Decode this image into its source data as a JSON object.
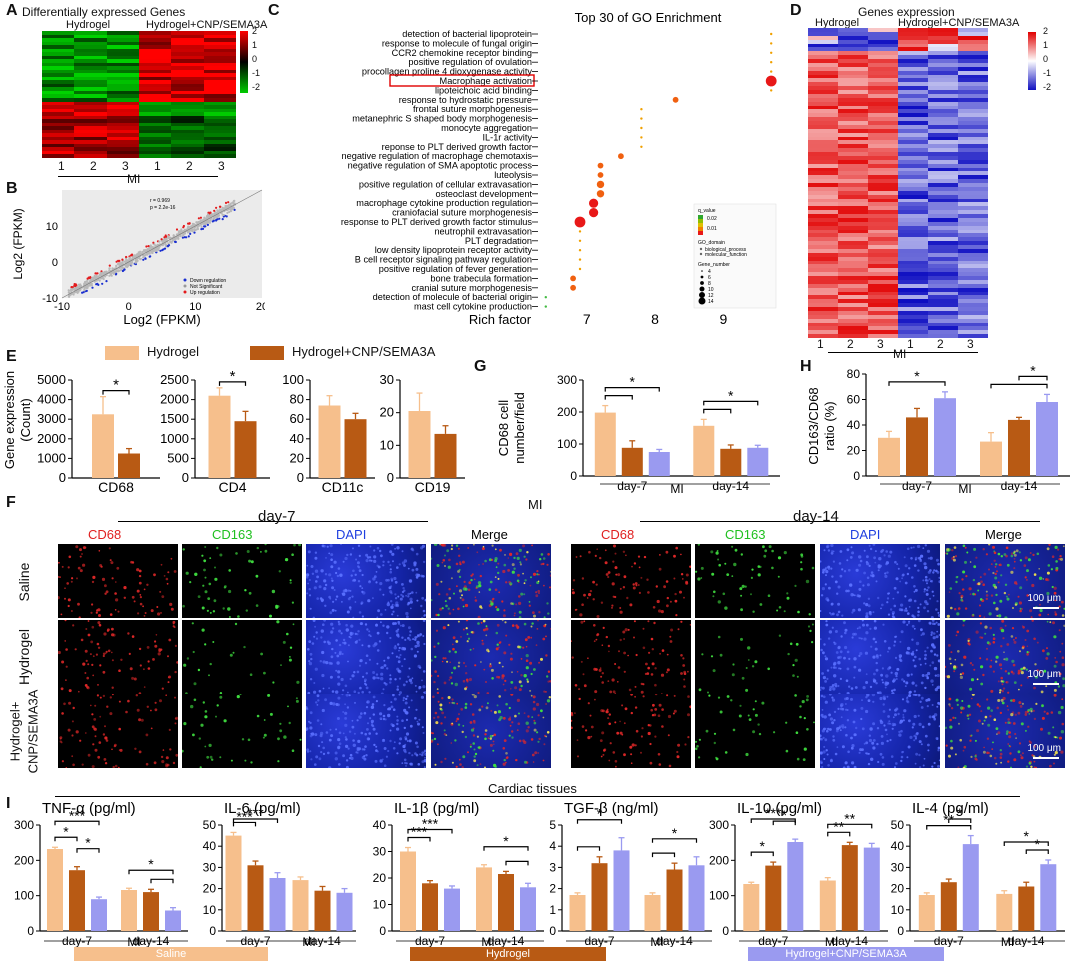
{
  "colors": {
    "saline": "#f6bf8c",
    "hydrogel": "#b85a14",
    "cnp": "#9a9af0",
    "red": "#e31a1c",
    "green": "#2eb82e",
    "blue": "#1a2fd0"
  },
  "panelA": {
    "letter": "A",
    "title": "Differentially expressed Genes",
    "group1": "Hydrogel",
    "group2": "Hydrogel+CNP/SEMA3A",
    "cols": [
      "1",
      "2",
      "3",
      "1",
      "2",
      "3"
    ],
    "xgroup": "MI",
    "scale": [
      "2",
      "1",
      "0",
      "-1",
      "-2"
    ]
  },
  "panelB": {
    "letter": "B",
    "ylabel": "Log2 (FPKM)",
    "xlabel": "Log2 (FPKM)",
    "stats": [
      "r = 0.969",
      "p = 2.2e-16"
    ],
    "legend": [
      "Down regulation",
      "Not Significant",
      "Up regulation"
    ],
    "chart_data": {
      "type": "scatter",
      "xlabel": "Log2 (FPKM)",
      "ylabel": "Log2 (FPKM)",
      "xlim": [
        -10,
        20
      ],
      "ylim": [
        -10,
        20
      ],
      "xticks": [
        "-10",
        "0",
        "10",
        "20"
      ],
      "yticks": [
        "-10",
        "0",
        "10"
      ],
      "series": [
        {
          "name": "Down regulation"
        },
        {
          "name": "Not Significant"
        },
        {
          "name": "Up regulation"
        }
      ]
    }
  },
  "panelC": {
    "letter": "C",
    "title": "Top 30 of GO Enrichment",
    "xlabel": "Rich factor",
    "chart_data": {
      "type": "scatter",
      "title": "Top 30 of GO Enrichment",
      "xlabel": "Rich factor",
      "xlim": [
        6.3,
        9.8
      ],
      "xticks": [
        7,
        8,
        9
      ],
      "terms": [
        "detection of bacterial lipoprotein",
        "response to molecule of fungal origin",
        "CCR2 chemokine receptor binding",
        "positive regulation of ovulation",
        "procollagen proline 4 dioxygenase activity",
        "Macrophage activation",
        "lipoteichoic acid binding",
        "response to hydrostatic pressure",
        "frontal suture morphogenesis",
        "metanephric S shaped body morphogenesis",
        "monocyte aggregation",
        "IL-1r activity",
        "reponse to PLT derived growth factor",
        "negative regulation of macrophage chemotaxis",
        "negative regulation of SMA apoptotic process",
        "luteolysis",
        "positive regulation of cellular extravasation",
        "osteoclast development",
        "macrophage cytokine production regulation",
        "craniofacial suture morphogenesis",
        "response to PLT derived growth factor stimulus",
        "neutrophil extravasation",
        "PLT degradation",
        "low density lipoprotein receptor activity",
        "B cell receptor signaling pathway regulation",
        "positive regulation of fever generation",
        "bone trabecula formation",
        "cranial suture morphogenesis",
        "detection of molecule of bacterial origin",
        "mast cell cytokine production"
      ],
      "rich_factor": [
        9.7,
        9.7,
        9.7,
        9.7,
        9.7,
        9.7,
        9.7,
        8.3,
        7.8,
        7.8,
        7.8,
        7.8,
        7.8,
        7.5,
        7.2,
        7.2,
        7.2,
        7.2,
        7.1,
        7.1,
        6.9,
        6.9,
        6.9,
        6.9,
        6.9,
        6.9,
        6.8,
        6.8,
        6.4,
        6.4
      ],
      "gene_number": [
        4,
        4,
        4,
        4,
        4,
        14,
        4,
        8,
        4,
        4,
        4,
        4,
        4,
        8,
        8,
        8,
        10,
        10,
        12,
        12,
        14,
        4,
        4,
        4,
        4,
        4,
        8,
        8,
        4,
        4
      ],
      "q_value": [
        0.01,
        0.01,
        0.01,
        0.01,
        0.01,
        0.01,
        0.01,
        0.01,
        0.01,
        0.01,
        0.01,
        0.01,
        0.01,
        0.01,
        0.01,
        0.01,
        0.01,
        0.01,
        0.01,
        0.01,
        0.01,
        0.01,
        0.01,
        0.01,
        0.01,
        0.01,
        0.01,
        0.01,
        0.02,
        0.02
      ],
      "highlight": "Macrophage activation",
      "legend_qvalue": {
        "title": "q_value",
        "ticks": [
          "0.02",
          "0.01"
        ]
      },
      "legend_domain": {
        "title": "GO_domain",
        "items": [
          "biological_process",
          "molecular_function"
        ]
      },
      "legend_size": {
        "title": "Gene_number",
        "items": [
          "4",
          "6",
          "8",
          "10",
          "12",
          "14"
        ]
      }
    }
  },
  "panelD": {
    "letter": "D",
    "title": "Genes expression",
    "group1": "Hydrogel",
    "group2": "Hydrogel+CNP/SEMA3A",
    "cols": [
      "1",
      "2",
      "3",
      "1",
      "2",
      "3"
    ],
    "xgroup": "MI",
    "scale": [
      "2",
      "1",
      "0",
      "-1",
      "-2"
    ]
  },
  "panelE": {
    "letter": "E",
    "legend": [
      "Hydrogel",
      "Hydrogel+CNP/SEMA3A"
    ],
    "ylabel": "Gene expression (Count)",
    "chart_data": [
      {
        "type": "bar",
        "categories": [
          "CD68"
        ],
        "series": [
          {
            "name": "Hydrogel",
            "values": [
              3250
            ],
            "err": [
              900
            ]
          },
          {
            "name": "Hydrogel+CNP/SEMA3A",
            "values": [
              1250
            ],
            "err": [
              250
            ]
          }
        ],
        "ylim": [
          0,
          5000
        ],
        "yticks": [
          "0",
          "1000",
          "2000",
          "3000",
          "4000",
          "5000"
        ],
        "sig": "*"
      },
      {
        "type": "bar",
        "categories": [
          "CD4"
        ],
        "series": [
          {
            "name": "Hydrogel",
            "values": [
              2100
            ],
            "err": [
              200
            ]
          },
          {
            "name": "Hydrogel+CNP/SEMA3A",
            "values": [
              1450
            ],
            "err": [
              250
            ]
          }
        ],
        "ylim": [
          0,
          2500
        ],
        "yticks": [
          "0",
          "500",
          "1000",
          "1500",
          "2000",
          "2500"
        ],
        "sig": "*"
      },
      {
        "type": "bar",
        "categories": [
          "CD11c"
        ],
        "series": [
          {
            "name": "Hydrogel",
            "values": [
              74
            ],
            "err": [
              10
            ]
          },
          {
            "name": "Hydrogel+CNP/SEMA3A",
            "values": [
              60
            ],
            "err": [
              6
            ]
          }
        ],
        "ylim": [
          0,
          100
        ],
        "yticks": [
          "0",
          "20",
          "40",
          "60",
          "80",
          "100"
        ],
        "sig": ""
      },
      {
        "type": "bar",
        "categories": [
          "CD19"
        ],
        "series": [
          {
            "name": "Hydrogel",
            "values": [
              20.5
            ],
            "err": [
              5.5
            ]
          },
          {
            "name": "Hydrogel+CNP/SEMA3A",
            "values": [
              13.5
            ],
            "err": [
              2.5
            ]
          }
        ],
        "ylim": [
          0,
          30
        ],
        "yticks": [
          "0",
          "10",
          "20",
          "30"
        ],
        "sig": ""
      }
    ]
  },
  "panelG": {
    "letter": "G",
    "ylabel": "CD68 cell number/field",
    "xgroup": "MI",
    "chart_data": {
      "type": "bar",
      "categories": [
        "day-7",
        "day-14"
      ],
      "ylim": [
        0,
        300
      ],
      "yticks": [
        "0",
        "100",
        "200",
        "300"
      ],
      "series": [
        {
          "values": [
            198,
            157
          ],
          "err": [
            22,
            20
          ]
        },
        {
          "values": [
            88,
            85
          ],
          "err": [
            22,
            12
          ]
        },
        {
          "values": [
            75,
            88
          ],
          "err": [
            8,
            8
          ]
        }
      ],
      "brackets": [
        {
          "group": 0,
          "from": 0,
          "to": 1,
          "text": ""
        },
        {
          "group": 0,
          "from": 0,
          "to": 2,
          "text": "*"
        },
        {
          "group": 1,
          "from": 0,
          "to": 1,
          "text": ""
        },
        {
          "group": 1,
          "from": 0,
          "to": 2,
          "text": "*"
        }
      ]
    }
  },
  "panelH": {
    "letter": "H",
    "ylabel": "CD163/CD68 ratio (%)",
    "xgroup": "MI",
    "chart_data": {
      "type": "bar",
      "categories": [
        "day-7",
        "day-14"
      ],
      "ylim": [
        0,
        80
      ],
      "yticks": [
        "0",
        "20",
        "40",
        "60",
        "80"
      ],
      "series": [
        {
          "values": [
            30,
            27
          ],
          "err": [
            5,
            7
          ]
        },
        {
          "values": [
            46,
            44
          ],
          "err": [
            7,
            2
          ]
        },
        {
          "values": [
            61,
            58
          ],
          "err": [
            5,
            6
          ]
        }
      ],
      "brackets": [
        {
          "group": 0,
          "from": 0,
          "to": 2,
          "text": "*"
        },
        {
          "group": 1,
          "from": 0,
          "to": 2,
          "text": ""
        },
        {
          "group": 1,
          "from": 1,
          "to": 2,
          "text": "*"
        }
      ]
    }
  },
  "panelF": {
    "letter": "F",
    "mi": "MI",
    "day7": "day-7",
    "day14": "day-14",
    "channels": [
      "CD68",
      "CD163",
      "DAPI",
      "Merge"
    ],
    "rows": [
      "Saline",
      "Hydrogel",
      "Hydrogel+",
      "CNP/SEMA3A"
    ],
    "scalebar": "100 μm"
  },
  "panelI": {
    "letter": "I",
    "heading": "Cardiac tissues",
    "xgroup": "MI",
    "categories": [
      "day-7",
      "day-14"
    ],
    "chart_data": [
      {
        "type": "bar",
        "title": "TNF-α (pg/ml)",
        "ylim": [
          0,
          300
        ],
        "yticks": [
          "0",
          "100",
          "200",
          "300"
        ],
        "series": [
          {
            "values": [
              232,
              116
            ],
            "err": [
              5,
              5
            ]
          },
          {
            "values": [
              172,
              110
            ],
            "err": [
              10,
              8
            ]
          },
          {
            "values": [
              90,
              58
            ],
            "err": [
              6,
              8
            ]
          }
        ],
        "brackets": [
          {
            "group": 0,
            "from": 0,
            "to": 1,
            "text": "*"
          },
          {
            "group": 0,
            "from": 1,
            "to": 2,
            "text": "*"
          },
          {
            "group": 0,
            "from": 0,
            "to": 2,
            "text": "***"
          },
          {
            "group": 1,
            "from": 1,
            "to": 2,
            "text": ""
          },
          {
            "group": 1,
            "from": 0,
            "to": 2,
            "text": "*"
          }
        ]
      },
      {
        "type": "bar",
        "title": "IL-6 (pg/ml)",
        "ylim": [
          0,
          50
        ],
        "yticks": [
          "0",
          "10",
          "20",
          "30",
          "40",
          "50"
        ],
        "series": [
          {
            "values": [
              45,
              24
            ],
            "err": [
              1.5,
              1.5
            ]
          },
          {
            "values": [
              31,
              19
            ],
            "err": [
              2,
              2
            ]
          },
          {
            "values": [
              25,
              18
            ],
            "err": [
              2.5,
              2
            ]
          }
        ],
        "brackets": [
          {
            "group": 0,
            "from": 0,
            "to": 1,
            "text": "***"
          },
          {
            "group": 0,
            "from": 0,
            "to": 2,
            "text": "***"
          }
        ]
      },
      {
        "type": "bar",
        "title": "IL-1β (pg/ml)",
        "ylim": [
          0,
          40
        ],
        "yticks": [
          "0",
          "10",
          "20",
          "30",
          "40"
        ],
        "series": [
          {
            "values": [
              30,
              24
            ],
            "err": [
              1.5,
              1
            ]
          },
          {
            "values": [
              18,
              21.5
            ],
            "err": [
              1,
              1
            ]
          },
          {
            "values": [
              16,
              16.5
            ],
            "err": [
              1,
              1.5
            ]
          }
        ],
        "brackets": [
          {
            "group": 0,
            "from": 0,
            "to": 1,
            "text": "***"
          },
          {
            "group": 0,
            "from": 0,
            "to": 2,
            "text": "***"
          },
          {
            "group": 1,
            "from": 1,
            "to": 2,
            "text": ""
          },
          {
            "group": 1,
            "from": 0,
            "to": 2,
            "text": "*"
          }
        ]
      },
      {
        "type": "bar",
        "title": "TGF-β (ng/ml)",
        "ylim": [
          0,
          5
        ],
        "yticks": [
          "0",
          "1",
          "2",
          "3",
          "4",
          "5"
        ],
        "series": [
          {
            "values": [
              1.7,
              1.7
            ],
            "err": [
              0.1,
              0.1
            ]
          },
          {
            "values": [
              3.2,
              2.9
            ],
            "err": [
              0.3,
              0.3
            ]
          },
          {
            "values": [
              3.8,
              3.1
            ],
            "err": [
              0.6,
              0.4
            ]
          }
        ],
        "brackets": [
          {
            "group": 0,
            "from": 0,
            "to": 1,
            "text": ""
          },
          {
            "group": 0,
            "from": 0,
            "to": 2,
            "text": "*"
          },
          {
            "group": 1,
            "from": 0,
            "to": 1,
            "text": ""
          },
          {
            "group": 1,
            "from": 0,
            "to": 2,
            "text": "*"
          }
        ]
      },
      {
        "type": "bar",
        "title": "IL-10 (pg/ml)",
        "ylim": [
          0,
          300
        ],
        "yticks": [
          "0",
          "100",
          "200",
          "300"
        ],
        "series": [
          {
            "values": [
              133,
              143
            ],
            "err": [
              5,
              8
            ]
          },
          {
            "values": [
              185,
              243
            ],
            "err": [
              10,
              8
            ]
          },
          {
            "values": [
              252,
              236
            ],
            "err": [
              8,
              12
            ]
          }
        ],
        "brackets": [
          {
            "group": 0,
            "from": 0,
            "to": 1,
            "text": "*"
          },
          {
            "group": 0,
            "from": 1,
            "to": 2,
            "text": "*"
          },
          {
            "group": 0,
            "from": 0,
            "to": 2,
            "text": "***"
          },
          {
            "group": 1,
            "from": 0,
            "to": 1,
            "text": "**"
          },
          {
            "group": 1,
            "from": 0,
            "to": 2,
            "text": "**"
          }
        ]
      },
      {
        "type": "bar",
        "title": "IL-4 (pg/ml)",
        "ylim": [
          0,
          50
        ],
        "yticks": [
          "0",
          "10",
          "20",
          "30",
          "40",
          "50"
        ],
        "series": [
          {
            "values": [
              17,
              17.5
            ],
            "err": [
              1,
              1.5
            ]
          },
          {
            "values": [
              23,
              21
            ],
            "err": [
              1.5,
              2
            ]
          },
          {
            "values": [
              41,
              31.5
            ],
            "err": [
              4,
              2
            ]
          }
        ],
        "brackets": [
          {
            "group": 0,
            "from": 0,
            "to": 2,
            "text": "**"
          },
          {
            "group": 0,
            "from": 1,
            "to": 2,
            "text": "*"
          },
          {
            "group": 1,
            "from": 1,
            "to": 2,
            "text": "*"
          },
          {
            "group": 1,
            "from": 0,
            "to": 2,
            "text": "*"
          }
        ]
      }
    ],
    "legend": [
      "Saline",
      "Hydrogel",
      "Hydrogel+CNP/SEMA3A"
    ]
  }
}
